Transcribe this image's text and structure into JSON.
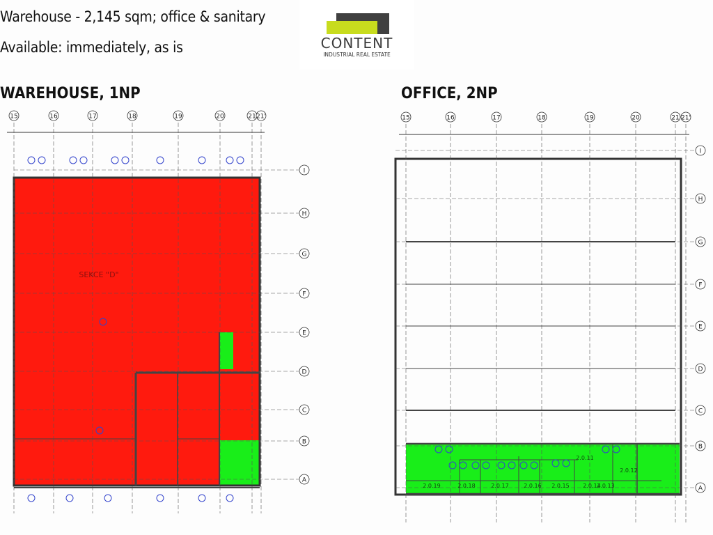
{
  "header": {
    "line1": "Warehouse -  2,145 sqm; office & sanitary",
    "line2": "Available: immediately, as is"
  },
  "logo": {
    "name": "CONTENT",
    "subtitle": "INDUSTRIAL REAL ESTATE",
    "colors": {
      "dark": "#404040",
      "lime": "#c8dc1e"
    }
  },
  "colors": {
    "warehouse_fill": "#ff1a0e",
    "office_fill": "#19ee19",
    "line": "#222222"
  },
  "warehouse": {
    "title": "WAREHOUSE, 1NP",
    "section_label": "SEKCE \"D\"",
    "columns": [
      "15",
      "16",
      "17",
      "18",
      "19",
      "20",
      "21",
      "21'"
    ],
    "rows": [
      "I",
      "H",
      "G",
      "F",
      "E",
      "D",
      "C",
      "B",
      "A"
    ]
  },
  "office": {
    "title": "OFFICE, 2NP",
    "columns": [
      "15",
      "16",
      "17",
      "18",
      "19",
      "20",
      "21",
      "21'"
    ],
    "rows": [
      "I",
      "H",
      "G",
      "F",
      "E",
      "D",
      "C",
      "B",
      "A"
    ],
    "rooms": [
      "2.0.19",
      "2.0.18",
      "2.0.17",
      "2.0.16",
      "2.0.15",
      "2.0.14",
      "2.0.13",
      "2.0.11",
      "2.0.12"
    ]
  }
}
